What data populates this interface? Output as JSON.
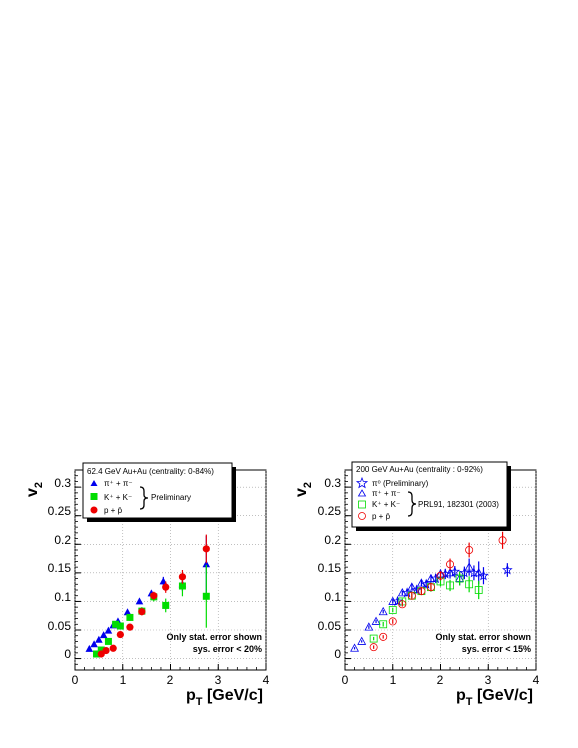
{
  "chart_data": [
    {
      "type": "scatter",
      "xlabel": "p_T [GeV/c]",
      "ylabel": "v_2",
      "xlim": [
        0,
        4
      ],
      "ylim": [
        -0.02,
        0.33
      ],
      "xticks": [
        "0",
        "1",
        "2",
        "3",
        "4"
      ],
      "yticks": [
        "0",
        "0.05",
        "0.1",
        "0.15",
        "0.2",
        "0.25",
        "0.3"
      ],
      "grid": "dotted",
      "legend": {
        "header": "62.4 GeV Au+Au (centrality: 0-84%)",
        "entries": [
          "π⁺ + π⁻",
          "K⁺ + K⁻",
          "p + p̄"
        ],
        "brace_label": "Preliminary",
        "placement": "top-left"
      },
      "annotations": [
        "Only stat. error shown",
        "sys. error < 20%"
      ],
      "series": [
        {
          "name": "π⁺ + π⁻",
          "marker": "triangle-filled",
          "color": "#0000ee",
          "x": [
            0.3,
            0.4,
            0.5,
            0.6,
            0.7,
            0.8,
            0.9,
            1.1,
            1.35,
            1.6,
            1.85,
            2.25,
            2.75
          ],
          "y": [
            0.017,
            0.025,
            0.033,
            0.041,
            0.049,
            0.058,
            0.065,
            0.081,
            0.1,
            0.114,
            0.135,
            0.13,
            0.165
          ],
          "err": [
            0.002,
            0.002,
            0.002,
            0.002,
            0.002,
            0.002,
            0.002,
            0.003,
            0.004,
            0.005,
            0.008,
            0.012,
            0.05
          ]
        },
        {
          "name": "K⁺ + K⁻",
          "marker": "square-filled",
          "color": "#00dd00",
          "x": [
            0.45,
            0.55,
            0.7,
            0.85,
            0.95,
            1.15,
            1.4,
            1.65,
            1.9,
            2.25,
            2.75
          ],
          "y": [
            0.008,
            0.015,
            0.03,
            0.06,
            0.057,
            0.072,
            0.083,
            0.108,
            0.093,
            0.127,
            0.109
          ],
          "err": [
            0.004,
            0.004,
            0.005,
            0.005,
            0.005,
            0.006,
            0.007,
            0.008,
            0.012,
            0.018,
            0.055
          ]
        },
        {
          "name": "p + p̄",
          "marker": "circle-filled",
          "color": "#ee0000",
          "x": [
            0.55,
            0.65,
            0.8,
            0.95,
            1.15,
            1.4,
            1.65,
            1.9,
            2.25,
            2.75
          ],
          "y": [
            0.008,
            0.014,
            0.018,
            0.042,
            0.055,
            0.082,
            0.11,
            0.125,
            0.143,
            0.192
          ],
          "err": [
            0.004,
            0.004,
            0.004,
            0.004,
            0.005,
            0.006,
            0.007,
            0.01,
            0.012,
            0.025
          ]
        }
      ]
    },
    {
      "type": "scatter",
      "xlabel": "p_T [GeV/c]",
      "ylabel": "v_2",
      "xlim": [
        0,
        4
      ],
      "ylim": [
        -0.02,
        0.33
      ],
      "xticks": [
        "0",
        "1",
        "2",
        "3",
        "4"
      ],
      "yticks": [
        "0",
        "0.05",
        "0.1",
        "0.15",
        "0.2",
        "0.25",
        "0.3"
      ],
      "grid": "dotted",
      "legend": {
        "header": "200 GeV Au+Au (centrality : 0-92%)",
        "entries": [
          "π⁰   (Preliminary)",
          "π⁺ + π⁻",
          "K⁺ + K⁻",
          "p + p̄"
        ],
        "brace_label": "PRL91, 182301 (2003)",
        "placement": "top-left"
      },
      "annotations": [
        "Only stat. error shown",
        "sys. error < 15%"
      ],
      "series": [
        {
          "name": "π⁰   (Preliminary)",
          "marker": "star-open",
          "color": "#0000ee",
          "x": [
            1.1,
            1.3,
            1.5,
            1.7,
            1.9,
            2.1,
            2.3,
            2.5,
            2.7,
            2.9,
            3.4
          ],
          "y": [
            0.1,
            0.115,
            0.12,
            0.13,
            0.14,
            0.148,
            0.152,
            0.15,
            0.15,
            0.145,
            0.155
          ],
          "err": [
            0.005,
            0.006,
            0.006,
            0.007,
            0.008,
            0.009,
            0.01,
            0.011,
            0.013,
            0.015,
            0.012
          ]
        },
        {
          "name": "π⁺ + π⁻",
          "marker": "triangle-open",
          "color": "#0000ee",
          "x": [
            0.2,
            0.35,
            0.5,
            0.65,
            0.8,
            1.0,
            1.2,
            1.4,
            1.6,
            1.8,
            2.0,
            2.2,
            2.4,
            2.6,
            2.8
          ],
          "y": [
            0.018,
            0.03,
            0.055,
            0.065,
            0.082,
            0.1,
            0.115,
            0.125,
            0.132,
            0.14,
            0.148,
            0.15,
            0.14,
            0.16,
            0.15
          ],
          "err": [
            0.002,
            0.002,
            0.003,
            0.003,
            0.003,
            0.004,
            0.004,
            0.005,
            0.006,
            0.007,
            0.008,
            0.01,
            0.012,
            0.015,
            0.02
          ]
        },
        {
          "name": "K⁺ + K⁻",
          "marker": "square-open",
          "color": "#00dd00",
          "x": [
            0.6,
            0.8,
            1.0,
            1.2,
            1.4,
            1.6,
            1.8,
            2.0,
            2.2,
            2.4,
            2.6,
            2.8
          ],
          "y": [
            0.035,
            0.06,
            0.085,
            0.1,
            0.11,
            0.118,
            0.125,
            0.135,
            0.128,
            0.14,
            0.13,
            0.12
          ],
          "err": [
            0.003,
            0.004,
            0.004,
            0.005,
            0.006,
            0.007,
            0.008,
            0.009,
            0.01,
            0.012,
            0.014,
            0.016
          ]
        },
        {
          "name": "p + p̄",
          "marker": "circle-open",
          "color": "#ee0000",
          "x": [
            0.6,
            0.8,
            1.0,
            1.2,
            1.4,
            1.6,
            1.8,
            2.0,
            2.2,
            2.6,
            3.3
          ],
          "y": [
            0.02,
            0.038,
            0.065,
            0.095,
            0.11,
            0.118,
            0.125,
            0.145,
            0.165,
            0.19,
            0.207
          ],
          "err": [
            0.003,
            0.003,
            0.004,
            0.004,
            0.005,
            0.006,
            0.007,
            0.008,
            0.01,
            0.013,
            0.015
          ]
        }
      ]
    }
  ]
}
